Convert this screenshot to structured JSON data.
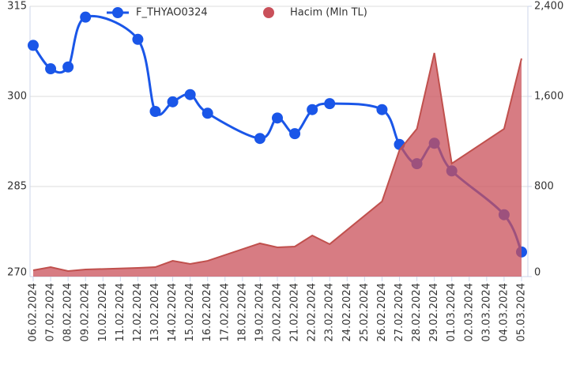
{
  "chart_data": {
    "type": "line-area",
    "xticks": [
      "06.02.2024",
      "07.02.2024",
      "08.02.2024",
      "09.02.2024",
      "10.02.2024",
      "11.02.2024",
      "12.02.2024",
      "13.02.2024",
      "14.02.2024",
      "15.02.2024",
      "16.02.2024",
      "17.02.2024",
      "18.02.2024",
      "19.02.2024",
      "20.02.2024",
      "21.02.2024",
      "22.02.2024",
      "23.02.2024",
      "24.02.2024",
      "25.02.2024",
      "26.02.2024",
      "27.02.2024",
      "28.02.2024",
      "29.02.2024",
      "01.03.2024",
      "02.03.2024",
      "03.03.2024",
      "04.03.2024",
      "05.03.2024"
    ],
    "x": [
      "06.02.2024",
      "07.02.2024",
      "08.02.2024",
      "09.02.2024",
      "12.02.2024",
      "13.02.2024",
      "14.02.2024",
      "15.02.2024",
      "16.02.2024",
      "19.02.2024",
      "20.02.2024",
      "21.02.2024",
      "22.02.2024",
      "23.02.2024",
      "26.02.2024",
      "27.02.2024",
      "28.02.2024",
      "29.02.2024",
      "01.03.2024",
      "04.03.2024",
      "05.03.2024"
    ],
    "series": [
      {
        "name": "F_THYAO0324",
        "type": "line",
        "color": "#1a56e8",
        "values": [
          308.5,
          304.6,
          304.9,
          313.2,
          309.5,
          297.5,
          299.1,
          300.3,
          297.2,
          293.0,
          296.4,
          293.8,
          297.8,
          298.8,
          297.8,
          292.0,
          288.8,
          292.2,
          287.6,
          280.3,
          274.1
        ]
      },
      {
        "name": "Hacim (Mln TL)",
        "type": "area",
        "axis": "y2",
        "color": "#c9505a",
        "values": [
          56,
          84,
          49,
          63,
          77,
          84,
          140,
          112,
          140,
          295,
          260,
          267,
          365,
          288,
          667,
          1123,
          1312,
          1986,
          1004,
          1312,
          1937
        ]
      }
    ],
    "ylim": [
      270,
      315
    ],
    "yticks": [
      270,
      285,
      300,
      315
    ],
    "y2lim": [
      0,
      2400
    ],
    "y2ticks": [
      0,
      800,
      {
        "value": 1600,
        "label": "1,600"
      },
      {
        "value": 2400,
        "label": "2,400"
      }
    ],
    "grid": true,
    "legend": "top"
  }
}
